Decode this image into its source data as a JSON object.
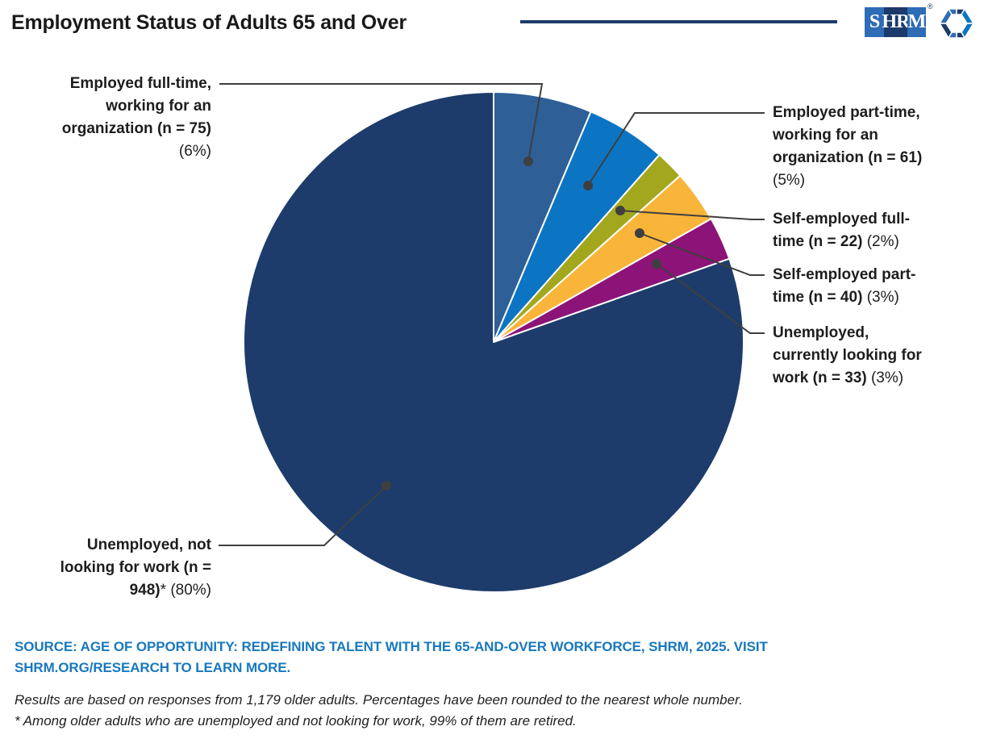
{
  "header": {
    "title": "Employment Status of Adults 65 and Over",
    "logo": {
      "seg1": "S",
      "seg2": "HR",
      "seg3": "M",
      "registered": "®"
    }
  },
  "chart_data": {
    "type": "pie",
    "title": "Employment Status of Adults 65 and Over",
    "total_n": 1179,
    "start_angle_deg": 0,
    "direction": "clockwise",
    "legend_position": "callout-labels",
    "slices": [
      {
        "label": "Employed full-time, working for an organization",
        "n": 75,
        "pct": 6,
        "color": "#2e5f97",
        "label_bold": "Employed full-time, working for an organization (n = 75)",
        "label_suffix": "(6%)"
      },
      {
        "label": "Employed part-time, working for an organization",
        "n": 61,
        "pct": 5,
        "color": "#0c75c3",
        "label_bold": "Employed part-time, working for an organization (n = 61)",
        "label_suffix": "(5%)"
      },
      {
        "label": "Self-employed full-time",
        "n": 22,
        "pct": 2,
        "color": "#a2a71e",
        "label_bold": "Self-employed full-time (n = 22)",
        "label_suffix": "(2%)"
      },
      {
        "label": "Self-employed part-time",
        "n": 40,
        "pct": 3,
        "color": "#f9b53a",
        "label_bold": "Self-employed part-time (n = 40)",
        "label_suffix": "(3%)"
      },
      {
        "label": "Unemployed, currently looking for work",
        "n": 33,
        "pct": 3,
        "color": "#8c1377",
        "label_bold": "Unemployed, currently looking for work (n = 33)",
        "label_suffix": "(3%)"
      },
      {
        "label": "Unemployed, not looking for work",
        "n": 948,
        "pct": 80,
        "color": "#1d3c6b",
        "label_bold": "Unemployed, not looking for work (n = 948)",
        "star": "*",
        "label_suffix": "(80%)"
      }
    ]
  },
  "colors": {
    "leader_line": "#3f3f3f",
    "title_rule": "#1d3c6b",
    "source_text": "#1878bd",
    "logo_outer_blue": "#2e6cb5",
    "logo_mid_navy": "#1c3a6a",
    "spark_bright_blue": "#0e76c2"
  },
  "footer": {
    "source": "SOURCE: AGE OF OPPORTUNITY: REDEFINING TALENT WITH THE 65-AND-OVER WORKFORCE, SHRM, 2025. VISIT SHRM.ORG/RESEARCH TO LEARN MORE.",
    "note_line1": "Results are based on responses from 1,179 older adults. Percentages have been rounded to the nearest whole number.",
    "note_line2": "* Among older adults who are unemployed and not looking for work, 99% of them are retired."
  }
}
